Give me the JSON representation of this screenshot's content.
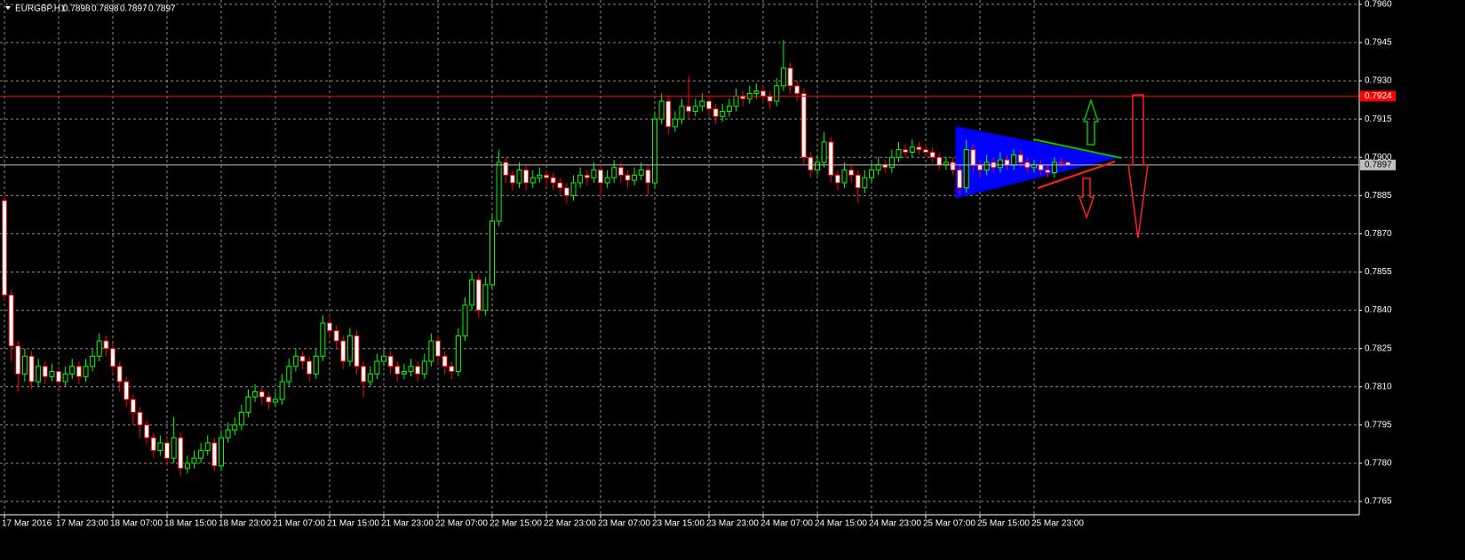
{
  "chart_data": {
    "type": "candlestick",
    "title": "EURGBP,H1",
    "ylim": [
      0.77598,
      0.79617
    ],
    "yticks": [
      {
        "value": 0.796,
        "label": "0.7960"
      },
      0.7945,
      {
        "value": 0.793,
        "label": "0.7930"
      },
      0.7915,
      {
        "value": 0.79,
        "label": "0.7900"
      },
      0.7885,
      {
        "value": 0.787,
        "label": "0.7870"
      },
      0.7855,
      {
        "value": 0.784,
        "label": "0.7840"
      },
      0.7825,
      {
        "value": 0.781,
        "label": "0.7810"
      },
      0.7795,
      {
        "value": 0.778,
        "label": "0.7780"
      },
      0.7765
    ],
    "grid": true,
    "bull_color": "#00ff00",
    "bear_color": "#ff0000",
    "bull_body": "#000000",
    "bear_body": "#ffffff",
    "hlines": [
      {
        "value": 0.7924,
        "color": "#ff0000"
      },
      {
        "value": 0.7897,
        "color": "#c0c0c0"
      }
    ],
    "categories": [
      "17 Mar 2016",
      null,
      null,
      null,
      null,
      null,
      null,
      null,
      "17 Mar 23:00",
      null,
      null,
      null,
      null,
      null,
      null,
      null,
      "18 Mar 07:00",
      null,
      null,
      null,
      null,
      null,
      null,
      null,
      "18 Mar 15:00",
      null,
      null,
      null,
      null,
      null,
      null,
      null,
      "18 Mar 23:00",
      null,
      null,
      null,
      null,
      null,
      null,
      null,
      "21 Mar 07:00",
      null,
      null,
      null,
      null,
      null,
      null,
      null,
      "21 Mar 15:00",
      null,
      null,
      null,
      null,
      null,
      null,
      null,
      "21 Mar 23:00",
      null,
      null,
      null,
      null,
      null,
      null,
      null,
      "22 Mar 07:00",
      null,
      null,
      null,
      null,
      null,
      null,
      null,
      "22 Mar 15:00",
      null,
      null,
      null,
      null,
      null,
      null,
      null,
      "22 Mar 23:00",
      null,
      null,
      null,
      null,
      null,
      null,
      null,
      "23 Mar 07:00",
      null,
      null,
      null,
      null,
      null,
      null,
      null,
      "23 Mar 15:00",
      null,
      null,
      null,
      null,
      null,
      null,
      null,
      "23 Mar 23:00",
      null,
      null,
      null,
      null,
      null,
      null,
      null,
      "24 Mar 07:00",
      null,
      null,
      null,
      null,
      null,
      null,
      null,
      "24 Mar 15:00",
      null,
      null,
      null,
      null,
      null,
      null,
      null,
      "24 Mar 23:00",
      null,
      null,
      null,
      null,
      null,
      null,
      null,
      "25 Mar 07:00",
      null,
      null,
      null,
      null,
      null,
      null,
      null,
      "25 Mar 15:00",
      null,
      null,
      null,
      null,
      null,
      null,
      null,
      "25 Mar 23:00",
      null,
      null,
      null,
      null,
      null
    ],
    "ohlc": [
      [
        0.7883,
        0.7885,
        0.7844,
        0.7846
      ],
      [
        0.7846,
        0.7848,
        0.782,
        0.7826
      ],
      [
        0.7826,
        0.7828,
        0.7808,
        0.7815
      ],
      [
        0.7815,
        0.7825,
        0.7812,
        0.7822
      ],
      [
        0.7822,
        0.7824,
        0.7809,
        0.7812
      ],
      [
        0.7812,
        0.7821,
        0.781,
        0.7818
      ],
      [
        0.7818,
        0.782,
        0.7811,
        0.7814
      ],
      [
        0.7814,
        0.7819,
        0.7812,
        0.7816
      ],
      [
        0.7816,
        0.7818,
        0.7809,
        0.7812
      ],
      [
        0.7812,
        0.7818,
        0.781,
        0.7815
      ],
      [
        0.7815,
        0.7821,
        0.7813,
        0.7818
      ],
      [
        0.7818,
        0.782,
        0.7811,
        0.7814
      ],
      [
        0.7814,
        0.7821,
        0.7812,
        0.7818
      ],
      [
        0.7818,
        0.7825,
        0.7816,
        0.7822
      ],
      [
        0.7822,
        0.7831,
        0.782,
        0.7828
      ],
      [
        0.7828,
        0.783,
        0.7822,
        0.7825
      ],
      [
        0.7825,
        0.7827,
        0.7815,
        0.7818
      ],
      [
        0.7818,
        0.782,
        0.7808,
        0.7812
      ],
      [
        0.7812,
        0.7814,
        0.7802,
        0.7805
      ],
      [
        0.7805,
        0.7807,
        0.7795,
        0.78
      ],
      [
        0.78,
        0.7802,
        0.779,
        0.7795
      ],
      [
        0.7795,
        0.7797,
        0.7787,
        0.779
      ],
      [
        0.779,
        0.7792,
        0.7782,
        0.7785
      ],
      [
        0.7785,
        0.7791,
        0.7783,
        0.7788
      ],
      [
        0.7788,
        0.779,
        0.7779,
        0.7782
      ],
      [
        0.7782,
        0.7798,
        0.778,
        0.779
      ],
      [
        0.779,
        0.7792,
        0.7775,
        0.7778
      ],
      [
        0.7778,
        0.7783,
        0.7776,
        0.778
      ],
      [
        0.778,
        0.7785,
        0.7778,
        0.7782
      ],
      [
        0.7782,
        0.7788,
        0.778,
        0.7785
      ],
      [
        0.7785,
        0.7791,
        0.7783,
        0.7788
      ],
      [
        0.7788,
        0.779,
        0.7777,
        0.7779
      ],
      [
        0.7779,
        0.7793,
        0.7777,
        0.779
      ],
      [
        0.779,
        0.7796,
        0.7788,
        0.7793
      ],
      [
        0.7793,
        0.7798,
        0.7791,
        0.7795
      ],
      [
        0.7795,
        0.7803,
        0.7793,
        0.78
      ],
      [
        0.78,
        0.7809,
        0.7798,
        0.7806
      ],
      [
        0.7806,
        0.7811,
        0.7804,
        0.7808
      ],
      [
        0.7808,
        0.781,
        0.7803,
        0.7806
      ],
      [
        0.7806,
        0.7808,
        0.7801,
        0.7804
      ],
      [
        0.7804,
        0.7808,
        0.7802,
        0.7805
      ],
      [
        0.7805,
        0.7815,
        0.7803,
        0.7812
      ],
      [
        0.7812,
        0.7821,
        0.781,
        0.7818
      ],
      [
        0.7818,
        0.7825,
        0.7816,
        0.7822
      ],
      [
        0.7822,
        0.7824,
        0.7817,
        0.782
      ],
      [
        0.782,
        0.7822,
        0.7812,
        0.7815
      ],
      [
        0.7815,
        0.7825,
        0.7813,
        0.7822
      ],
      [
        0.7822,
        0.7838,
        0.782,
        0.7835
      ],
      [
        0.7835,
        0.7838,
        0.7829,
        0.7832
      ],
      [
        0.7832,
        0.7834,
        0.7825,
        0.7828
      ],
      [
        0.7828,
        0.783,
        0.7817,
        0.782
      ],
      [
        0.782,
        0.7833,
        0.7818,
        0.783
      ],
      [
        0.783,
        0.7832,
        0.7815,
        0.7818
      ],
      [
        0.7818,
        0.782,
        0.7806,
        0.7812
      ],
      [
        0.7812,
        0.7818,
        0.781,
        0.7815
      ],
      [
        0.7815,
        0.7823,
        0.7813,
        0.782
      ],
      [
        0.782,
        0.7825,
        0.7818,
        0.7822
      ],
      [
        0.7822,
        0.7824,
        0.7815,
        0.7818
      ],
      [
        0.7818,
        0.782,
        0.7812,
        0.7815
      ],
      [
        0.7815,
        0.7819,
        0.7813,
        0.7816
      ],
      [
        0.7816,
        0.7821,
        0.7814,
        0.7818
      ],
      [
        0.7818,
        0.782,
        0.7812,
        0.7815
      ],
      [
        0.7815,
        0.7823,
        0.7813,
        0.782
      ],
      [
        0.782,
        0.7831,
        0.7818,
        0.7828
      ],
      [
        0.7828,
        0.783,
        0.7819,
        0.7822
      ],
      [
        0.7822,
        0.7824,
        0.7815,
        0.7818
      ],
      [
        0.7818,
        0.782,
        0.7813,
        0.7816
      ],
      [
        0.7816,
        0.7833,
        0.7814,
        0.783
      ],
      [
        0.783,
        0.7845,
        0.7828,
        0.7842
      ],
      [
        0.7842,
        0.7855,
        0.784,
        0.7852
      ],
      [
        0.7852,
        0.7854,
        0.7837,
        0.784
      ],
      [
        0.784,
        0.7853,
        0.7838,
        0.785
      ],
      [
        0.785,
        0.7878,
        0.7848,
        0.7875
      ],
      [
        0.7875,
        0.7903,
        0.7873,
        0.7898
      ],
      [
        0.7898,
        0.79,
        0.789,
        0.7893
      ],
      [
        0.7893,
        0.7895,
        0.7887,
        0.789
      ],
      [
        0.789,
        0.7898,
        0.7888,
        0.7895
      ],
      [
        0.7895,
        0.7897,
        0.7887,
        0.789
      ],
      [
        0.789,
        0.7895,
        0.7888,
        0.7892
      ],
      [
        0.7892,
        0.7896,
        0.789,
        0.7893
      ],
      [
        0.7893,
        0.7895,
        0.7889,
        0.7892
      ],
      [
        0.7892,
        0.7894,
        0.7887,
        0.789
      ],
      [
        0.789,
        0.7892,
        0.7885,
        0.7888
      ],
      [
        0.7888,
        0.789,
        0.7882,
        0.7885
      ],
      [
        0.7885,
        0.7893,
        0.7883,
        0.789
      ],
      [
        0.789,
        0.7896,
        0.7888,
        0.7893
      ],
      [
        0.7893,
        0.7895,
        0.7889,
        0.7892
      ],
      [
        0.7892,
        0.7898,
        0.789,
        0.7895
      ],
      [
        0.7895,
        0.7897,
        0.7884,
        0.789
      ],
      [
        0.789,
        0.7895,
        0.7888,
        0.7892
      ],
      [
        0.7892,
        0.7899,
        0.789,
        0.7896
      ],
      [
        0.7896,
        0.7898,
        0.789,
        0.7893
      ],
      [
        0.7893,
        0.7895,
        0.7888,
        0.7891
      ],
      [
        0.7891,
        0.7896,
        0.7889,
        0.7893
      ],
      [
        0.7893,
        0.7898,
        0.7891,
        0.7895
      ],
      [
        0.7895,
        0.7897,
        0.7885,
        0.789
      ],
      [
        0.789,
        0.7918,
        0.7888,
        0.7915
      ],
      [
        0.7915,
        0.7925,
        0.7913,
        0.7922
      ],
      [
        0.7922,
        0.7924,
        0.7909,
        0.7912
      ],
      [
        0.7912,
        0.7918,
        0.791,
        0.7915
      ],
      [
        0.7915,
        0.7923,
        0.7913,
        0.792
      ],
      [
        0.792,
        0.7932,
        0.7915,
        0.7918
      ],
      [
        0.7918,
        0.7923,
        0.7916,
        0.792
      ],
      [
        0.792,
        0.7925,
        0.7918,
        0.7922
      ],
      [
        0.7922,
        0.7924,
        0.7916,
        0.7919
      ],
      [
        0.7919,
        0.7921,
        0.7913,
        0.7916
      ],
      [
        0.7916,
        0.7921,
        0.7914,
        0.7918
      ],
      [
        0.7918,
        0.7923,
        0.7916,
        0.792
      ],
      [
        0.792,
        0.7927,
        0.7918,
        0.7924
      ],
      [
        0.7924,
        0.7926,
        0.792,
        0.7923
      ],
      [
        0.7923,
        0.7928,
        0.7921,
        0.7925
      ],
      [
        0.7925,
        0.7929,
        0.7923,
        0.7926
      ],
      [
        0.7926,
        0.7928,
        0.7921,
        0.7924
      ],
      [
        0.7924,
        0.7926,
        0.7919,
        0.7922
      ],
      [
        0.7922,
        0.7931,
        0.792,
        0.7928
      ],
      [
        0.7928,
        0.7946,
        0.7926,
        0.7935
      ],
      [
        0.7935,
        0.7937,
        0.7925,
        0.7928
      ],
      [
        0.7928,
        0.793,
        0.7922,
        0.7925
      ],
      [
        0.7925,
        0.7927,
        0.7897,
        0.79
      ],
      [
        0.79,
        0.7902,
        0.7892,
        0.7895
      ],
      [
        0.7895,
        0.7901,
        0.7893,
        0.7898
      ],
      [
        0.7898,
        0.791,
        0.7896,
        0.7906
      ],
      [
        0.7906,
        0.7908,
        0.789,
        0.7893
      ],
      [
        0.7893,
        0.7895,
        0.7887,
        0.789
      ],
      [
        0.789,
        0.7898,
        0.7888,
        0.7895
      ],
      [
        0.7895,
        0.7897,
        0.789,
        0.7893
      ],
      [
        0.7893,
        0.7895,
        0.7882,
        0.7888
      ],
      [
        0.7888,
        0.7895,
        0.7886,
        0.7892
      ],
      [
        0.7892,
        0.7898,
        0.789,
        0.7895
      ],
      [
        0.7895,
        0.79,
        0.7893,
        0.7897
      ],
      [
        0.7897,
        0.7899,
        0.7894,
        0.7896
      ],
      [
        0.7896,
        0.7903,
        0.7894,
        0.79
      ],
      [
        0.79,
        0.7906,
        0.7898,
        0.7903
      ],
      [
        0.7903,
        0.7905,
        0.79,
        0.7902
      ],
      [
        0.7902,
        0.7907,
        0.79,
        0.7904
      ],
      [
        0.7904,
        0.7906,
        0.7901,
        0.7903
      ],
      [
        0.7903,
        0.7905,
        0.79,
        0.7902
      ],
      [
        0.7902,
        0.7904,
        0.7898,
        0.79
      ],
      [
        0.79,
        0.7902,
        0.7895,
        0.7897
      ],
      [
        0.7897,
        0.79,
        0.7895,
        0.7898
      ],
      [
        0.7898,
        0.79,
        0.7893,
        0.7895
      ],
      [
        0.7895,
        0.7897,
        0.7885,
        0.7888
      ],
      [
        0.7888,
        0.7907,
        0.7886,
        0.7903
      ],
      [
        0.7903,
        0.7905,
        0.7894,
        0.7897
      ],
      [
        0.7897,
        0.7899,
        0.7892,
        0.7895
      ],
      [
        0.7895,
        0.7901,
        0.7893,
        0.7898
      ],
      [
        0.7898,
        0.79,
        0.7894,
        0.7896
      ],
      [
        0.7896,
        0.7902,
        0.7894,
        0.7899
      ],
      [
        0.7899,
        0.7901,
        0.7895,
        0.7897
      ],
      [
        0.7897,
        0.7903,
        0.7895,
        0.7901
      ],
      [
        0.7901,
        0.7903,
        0.7896,
        0.7898
      ],
      [
        0.7898,
        0.79,
        0.7894,
        0.7896
      ],
      [
        0.7896,
        0.7899,
        0.7894,
        0.7897
      ],
      [
        0.7897,
        0.7899,
        0.7893,
        0.7895
      ],
      [
        0.7895,
        0.7897,
        0.7892,
        0.7894
      ],
      [
        0.7894,
        0.79,
        0.7892,
        0.7898
      ],
      [
        0.7898,
        0.79,
        0.7896,
        0.7898
      ],
      [
        0.7898,
        0.7898,
        0.7897,
        0.7897
      ]
    ]
  }
}
